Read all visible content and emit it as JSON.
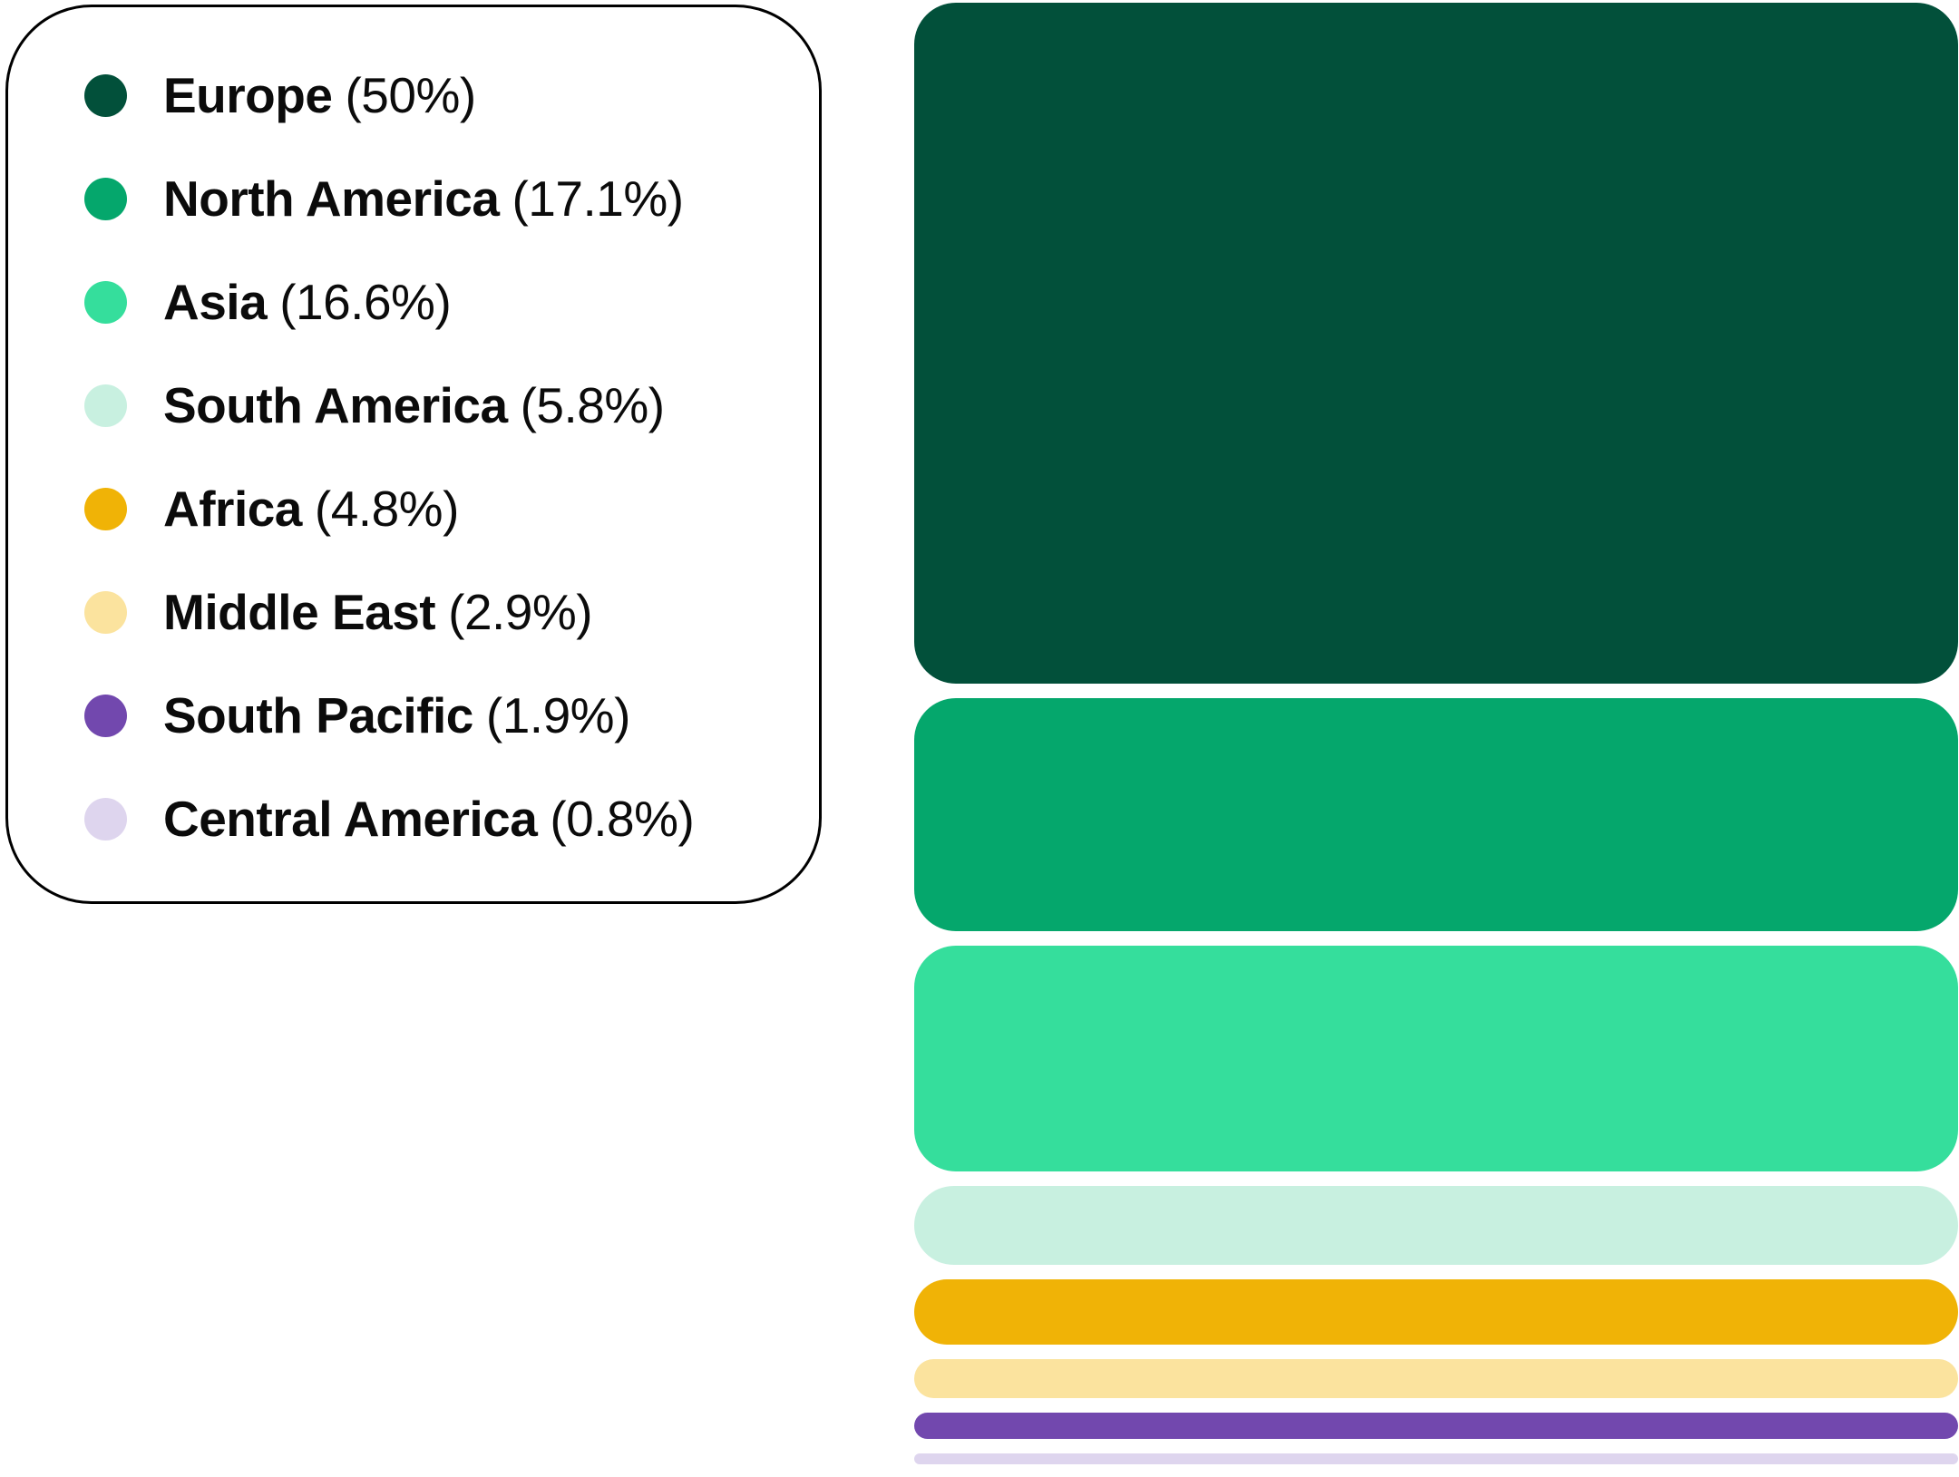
{
  "chart_data": {
    "type": "bar",
    "orientation": "horizontal",
    "legend_position": "left",
    "units": "percent",
    "title": "",
    "xlabel": "",
    "ylabel": "",
    "grid": false,
    "items": [
      {
        "label": "Europe",
        "value": 50,
        "value_text": "(50%)",
        "color": "#02503a"
      },
      {
        "label": "North America",
        "value": 17.1,
        "value_text": "(17.1%)",
        "color": "#05a76c"
      },
      {
        "label": "Asia",
        "value": 16.6,
        "value_text": "(16.6%)",
        "color": "#35de9c"
      },
      {
        "label": "South America",
        "value": 5.8,
        "value_text": "(5.8%)",
        "color": "#c8f0e0"
      },
      {
        "label": "Africa",
        "value": 4.8,
        "value_text": "(4.8%)",
        "color": "#f0b306"
      },
      {
        "label": "Middle East",
        "value": 2.9,
        "value_text": "(2.9%)",
        "color": "#fbe39e"
      },
      {
        "label": "South Pacific",
        "value": 1.9,
        "value_text": "(1.9%)",
        "color": "#7248ae"
      },
      {
        "label": "Central America",
        "value": 0.8,
        "value_text": "(0.8%)",
        "color": "#ded5ee"
      }
    ]
  },
  "legend": {
    "border_color": "#000000",
    "text_color": "#0b0b0b"
  }
}
